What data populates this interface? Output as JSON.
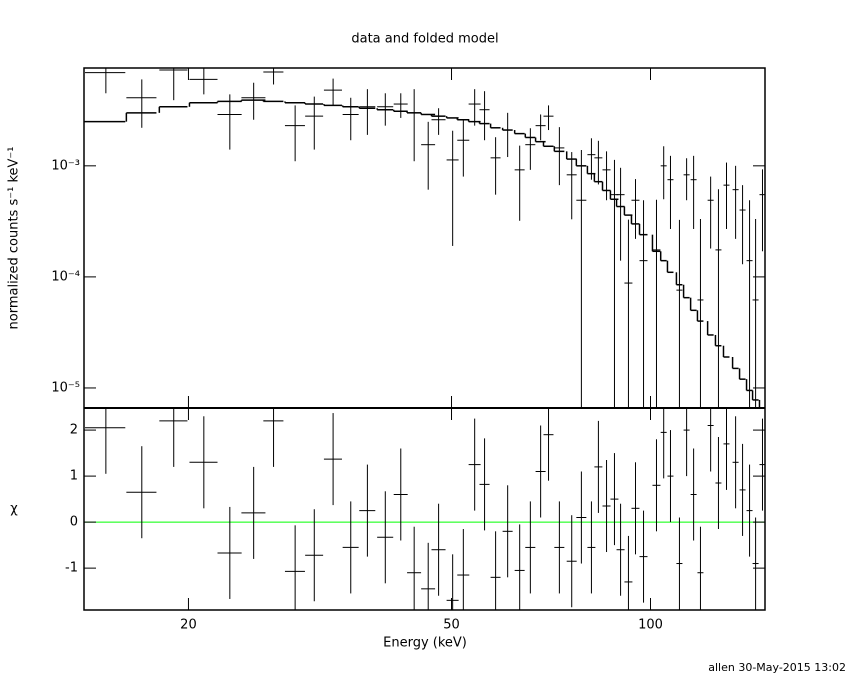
{
  "chart_data": [
    {
      "type": "errorbar",
      "title": "data and folded model",
      "ylabel": "normalized counts s⁻¹ keV⁻¹",
      "log_x": true,
      "log_y": true,
      "color": "#000000",
      "ylim": [
        6.6e-06,
        0.0076
      ],
      "yticks": [
        {
          "value": 1e-05,
          "label": "10⁻⁵"
        },
        {
          "value": 0.0001,
          "label": "10⁻⁴"
        },
        {
          "value": 0.001,
          "label": "10⁻³"
        }
      ],
      "x": [
        15.0,
        17.0,
        19.0,
        21.1,
        23.1,
        25.1,
        26.9,
        29.0,
        31.0,
        33.1,
        35.2,
        37.3,
        39.7,
        41.9,
        43.9,
        46.1,
        47.8,
        50.2,
        52.1,
        54.2,
        56.1,
        58.3,
        60.8,
        63.4,
        65.8,
        68.2,
        70.1,
        72.8,
        76.0,
        78.6,
        81.4,
        83.4,
        85.8,
        88.2,
        90.1,
        92.6,
        94.9,
        97.6,
        102.1,
        104.7,
        107.2,
        110.6,
        113.4,
        116.2,
        119.0,
        123.3,
        126.7,
        130.3,
        134.5,
        137.8,
        141.2,
        144.2,
        147.7
      ],
      "xerr": [
        1.05,
        0.89,
        0.93,
        1.03,
        0.97,
        1.05,
        0.94,
        1.01,
        0.97,
        1.04,
        0.98,
        1.04,
        1.11,
        1.02,
        1.07,
        1.12,
        1.17,
        1.05,
        1.09,
        1.13,
        0.98,
        1.01,
        1.06,
        1.1,
        1.15,
        1.19,
        1.22,
        1.27,
        1.32,
        1.37,
        1.13,
        1.16,
        1.2,
        1.23,
        1.26,
        1.29,
        1.32,
        1.36,
        1.42,
        1.09,
        1.12,
        1.16,
        1.19,
        1.21,
        1.24,
        1.29,
        1.32,
        1.36,
        1.41,
        1.44,
        1.48,
        1.51,
        1.54
      ],
      "values": [
        0.0069,
        0.0041,
        0.0073,
        0.006,
        0.0029,
        0.0041,
        0.007,
        0.0023,
        0.0028,
        0.0048,
        0.0029,
        0.0034,
        0.0034,
        0.0036,
        0.003,
        0.00155,
        0.0026,
        0.00113,
        0.0017,
        0.0036,
        0.0032,
        0.00118,
        0.0021,
        0.00092,
        0.00155,
        0.0023,
        0.0028,
        0.00145,
        0.00083,
        0.00049,
        0.00126,
        0.00118,
        0.00092,
        0.00055,
        0.00055,
        8.8e-05,
        0.00049,
        0.00014,
        0.000175,
        0.001,
        0.00075,
        7.6e-05,
        0.00083,
        0.00075,
        6.2e-05,
        0.00049,
        0.000175,
        0.00067,
        0.00061,
        0.0004,
        0.00014,
        6.2e-05,
        0.00055
      ],
      "errors": [
        0.0024,
        0.0019,
        0.0034,
        0.0016,
        0.0015,
        0.0015,
        0.0016,
        0.0012,
        0.0014,
        0.0013,
        0.0012,
        0.0015,
        0.0011,
        0.0009,
        0.0019,
        0.00094,
        0.0007,
        0.00094,
        0.0009,
        0.0013,
        0.0015,
        0.00063,
        0.0009,
        0.0006,
        0.00063,
        0.0006,
        0.0007,
        0.00078,
        0.0005,
        0.0009,
        0.00051,
        0.0005,
        0.00043,
        0.00058,
        0.00041,
        0.00024,
        0.00027,
        0.00035,
        0.00032,
        0.0005,
        0.00048,
        0.00025,
        0.00034,
        0.00048,
        0.00027,
        0.00031,
        0.00044,
        0.0004,
        0.00039,
        0.00027,
        0.00035,
        0.00027,
        0.00038
      ],
      "model": [
        0.0025,
        0.003,
        0.0034,
        0.0037,
        0.0038,
        0.0039,
        0.0038,
        0.0037,
        0.0036,
        0.0035,
        0.0034,
        0.0033,
        0.0032,
        0.0031,
        0.003,
        0.0029,
        0.0028,
        0.0027,
        0.0026,
        0.0025,
        0.0024,
        0.0022,
        0.0021,
        0.00195,
        0.0018,
        0.00165,
        0.0015,
        0.00135,
        0.00115,
        0.001,
        0.00085,
        0.00072,
        0.0006,
        0.0005,
        0.00043,
        0.00036,
        0.0003,
        0.00024,
        0.00017,
        0.00014,
        0.00011,
        8.5e-05,
        6.5e-05,
        5e-05,
        4e-05,
        3e-05,
        2.4e-05,
        1.9e-05,
        1.5e-05,
        1.2e-05,
        9.5e-06,
        7.8e-06,
        6.5e-06
      ]
    },
    {
      "type": "residual",
      "xlabel": "Energy (keV)",
      "ylabel": "χ",
      "color": "#000000",
      "zero_line_color": "#00ff00",
      "xlim": [
        13.9,
        149
      ],
      "xticks": [
        20,
        50,
        100
      ],
      "ylim": [
        -1.91,
        2.48
      ],
      "yticks": [
        -1,
        0,
        1,
        2
      ],
      "error": 1,
      "values": [
        2.05,
        0.65,
        2.2,
        1.3,
        -0.67,
        0.2,
        2.2,
        -1.07,
        -0.72,
        1.37,
        -0.55,
        0.25,
        -0.33,
        0.6,
        -1.1,
        -1.45,
        -0.6,
        -1.7,
        -1.15,
        1.25,
        0.82,
        -1.2,
        -0.2,
        -1.05,
        -0.55,
        1.1,
        1.9,
        -0.55,
        -0.85,
        0.1,
        -0.55,
        1.2,
        0.35,
        0.5,
        -0.6,
        -1.3,
        0.3,
        -0.75,
        0.8,
        1.95,
        1.0,
        -0.9,
        2.0,
        0.6,
        -1.1,
        2.1,
        0.85,
        1.7,
        1.3,
        0.7,
        0.25,
        -0.9,
        1.25
      ]
    }
  ],
  "footer": "allen 30-May-2015 13:02"
}
